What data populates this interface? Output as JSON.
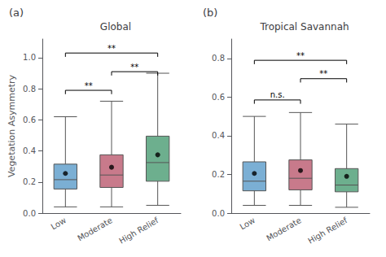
{
  "chart_data": [
    {
      "type": "boxplot",
      "title": "Global",
      "panel_label": "(a)",
      "ylabel": "Vegetation Asymmetry",
      "categories": [
        "Low",
        "Moderate",
        "High Relief"
      ],
      "ylim": [
        0.0,
        1.12
      ],
      "yticks": [
        {
          "value": 0.0,
          "label": "0.0"
        },
        0.2,
        0.4,
        0.6,
        0.8,
        {
          "value": 1.0,
          "label": "1.0"
        }
      ],
      "grid": false,
      "series": [
        {
          "type": "boxplot",
          "colors": [
            "#7bafd4",
            "#c87a8b",
            "#6daf8e"
          ],
          "values": [
            [
              0.04,
              0.155,
              0.215,
              0.315,
              0.62
            ],
            [
              0.04,
              0.165,
              0.245,
              0.375,
              0.72
            ],
            [
              0.05,
              0.205,
              0.325,
              0.495,
              0.9
            ]
          ]
        },
        {
          "type": "scatter",
          "color": "#000000",
          "values": [
            0.255,
            0.295,
            0.375
          ]
        }
      ],
      "annotations": [
        {
          "x1": "Low",
          "x2": "Moderate",
          "y": 0.79,
          "text": "**"
        },
        {
          "x1": "Low",
          "x2": "High Relief",
          "y": 1.03,
          "text": "**"
        },
        {
          "x1": "Moderate",
          "x2": "High Relief",
          "y": 0.91,
          "text": "**"
        }
      ]
    },
    {
      "type": "boxplot",
      "title": "Tropical Savannah",
      "panel_label": "(b)",
      "categories": [
        "Low",
        "Moderate",
        "High Relief"
      ],
      "ylim": [
        0.0,
        0.9
      ],
      "yticks": [
        {
          "value": 0.0,
          "label": "0.0"
        },
        0.2,
        0.4,
        0.6,
        0.8
      ],
      "grid": false,
      "series": [
        {
          "type": "boxplot",
          "colors": [
            "#7bafd4",
            "#c87a8b",
            "#6daf8e"
          ],
          "values": [
            [
              0.04,
              0.115,
              0.165,
              0.265,
              0.5
            ],
            [
              0.04,
              0.12,
              0.18,
              0.275,
              0.52
            ],
            [
              0.03,
              0.11,
              0.145,
              0.23,
              0.46
            ]
          ]
        },
        {
          "type": "scatter",
          "color": "#000000",
          "values": [
            0.205,
            0.22,
            0.19
          ]
        }
      ],
      "annotations": [
        {
          "x1": "Low",
          "x2": "Moderate",
          "y": 0.585,
          "text": "n.s."
        },
        {
          "x1": "Low",
          "x2": "High Relief",
          "y": 0.79,
          "text": "**"
        },
        {
          "x1": "Moderate",
          "x2": "High Relief",
          "y": 0.695,
          "text": "**"
        }
      ]
    }
  ]
}
